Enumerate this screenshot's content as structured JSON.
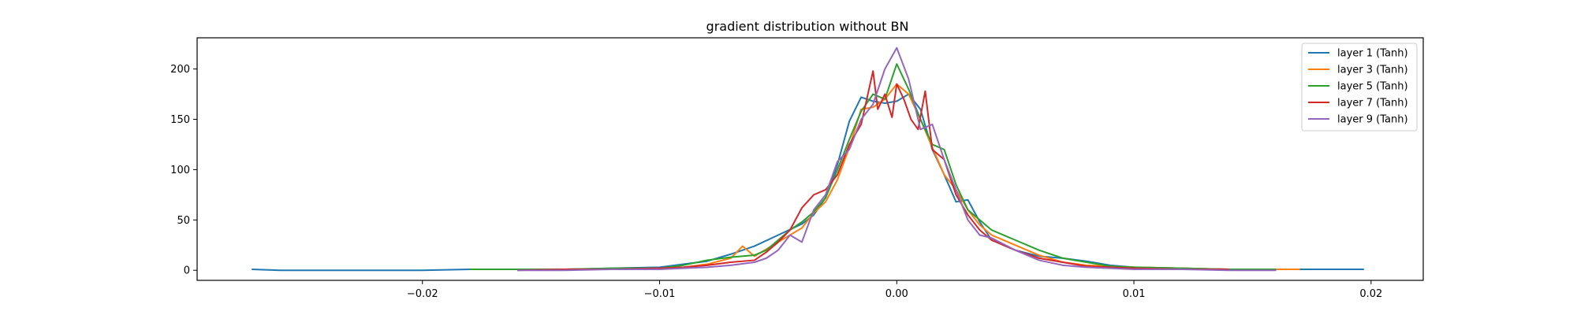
{
  "chart_data": {
    "type": "line",
    "title": "gradient distribution without BN",
    "xlabel": "",
    "ylabel": "",
    "xlim": [
      -0.0295,
      0.0222
    ],
    "ylim": [
      -10,
      231
    ],
    "x_ticks": [
      -0.02,
      -0.01,
      0.0,
      0.01,
      0.02
    ],
    "x_tick_labels": [
      "−0.02",
      "−0.01",
      "0.00",
      "0.01",
      "0.02"
    ],
    "y_ticks": [
      0,
      50,
      100,
      150,
      200
    ],
    "y_tick_labels": [
      "0",
      "50",
      "100",
      "150",
      "200"
    ],
    "grid": false,
    "legend_position": "top-right",
    "series": [
      {
        "name": "layer 1 (Tanh)",
        "color": "#1f77b4",
        "x": [
          -0.0272,
          -0.026,
          -0.024,
          -0.022,
          -0.02,
          -0.018,
          -0.016,
          -0.014,
          -0.012,
          -0.01,
          -0.009,
          -0.008,
          -0.007,
          -0.006,
          -0.005,
          -0.004,
          -0.0035,
          -0.003,
          -0.0025,
          -0.002,
          -0.0015,
          -0.001,
          -0.0005,
          0.0,
          0.0005,
          0.001,
          0.0015,
          0.002,
          0.0025,
          0.003,
          0.0035,
          0.004,
          0.005,
          0.006,
          0.007,
          0.008,
          0.009,
          0.01,
          0.012,
          0.014,
          0.016,
          0.018,
          0.0197
        ],
        "y": [
          1,
          0,
          0,
          0,
          0,
          1,
          1,
          1,
          2,
          3,
          6,
          9,
          16,
          24,
          35,
          46,
          55,
          72,
          105,
          148,
          172,
          168,
          166,
          168,
          175,
          160,
          120,
          95,
          68,
          70,
          48,
          30,
          20,
          14,
          12,
          9,
          5,
          3,
          2,
          1,
          1,
          1,
          1
        ]
      },
      {
        "name": "layer 3 (Tanh)",
        "color": "#ff7f0e",
        "x": [
          -0.018,
          -0.016,
          -0.014,
          -0.012,
          -0.01,
          -0.009,
          -0.008,
          -0.007,
          -0.0065,
          -0.006,
          -0.005,
          -0.004,
          -0.0035,
          -0.003,
          -0.0025,
          -0.002,
          -0.0015,
          -0.001,
          -0.0005,
          0.0,
          0.0005,
          0.001,
          0.0015,
          0.002,
          0.0025,
          0.003,
          0.0035,
          0.004,
          0.005,
          0.006,
          0.007,
          0.008,
          0.009,
          0.01,
          0.012,
          0.014,
          0.016,
          0.017
        ],
        "y": [
          1,
          1,
          1,
          1,
          2,
          3,
          6,
          12,
          24,
          14,
          28,
          42,
          57,
          68,
          90,
          122,
          160,
          162,
          170,
          185,
          175,
          150,
          122,
          95,
          80,
          60,
          45,
          35,
          25,
          15,
          8,
          5,
          4,
          3,
          2,
          1,
          1,
          1
        ]
      },
      {
        "name": "layer 5 (Tanh)",
        "color": "#2ca02c",
        "x": [
          -0.018,
          -0.016,
          -0.014,
          -0.012,
          -0.01,
          -0.009,
          -0.008,
          -0.007,
          -0.006,
          -0.0055,
          -0.005,
          -0.0045,
          -0.004,
          -0.0035,
          -0.003,
          -0.0025,
          -0.002,
          -0.0015,
          -0.001,
          -0.0005,
          0.0,
          0.0005,
          0.001,
          0.0015,
          0.002,
          0.0025,
          0.003,
          0.0035,
          0.004,
          0.005,
          0.006,
          0.007,
          0.008,
          0.009,
          0.01,
          0.012,
          0.014,
          0.016
        ],
        "y": [
          1,
          1,
          1,
          2,
          2,
          5,
          10,
          13,
          15,
          20,
          30,
          40,
          48,
          58,
          72,
          100,
          130,
          158,
          175,
          170,
          205,
          180,
          150,
          125,
          120,
          85,
          60,
          50,
          40,
          30,
          20,
          12,
          8,
          4,
          3,
          2,
          1,
          1
        ]
      },
      {
        "name": "layer 7 (Tanh)",
        "color": "#d62728",
        "x": [
          -0.016,
          -0.014,
          -0.012,
          -0.01,
          -0.009,
          -0.008,
          -0.007,
          -0.006,
          -0.0055,
          -0.005,
          -0.0045,
          -0.004,
          -0.0035,
          -0.003,
          -0.0025,
          -0.002,
          -0.0015,
          -0.001,
          -0.0008,
          -0.0005,
          -0.0002,
          0.0,
          0.0003,
          0.0006,
          0.0009,
          0.0012,
          0.0015,
          0.002,
          0.0025,
          0.003,
          0.0035,
          0.004,
          0.005,
          0.006,
          0.007,
          0.008,
          0.009,
          0.01,
          0.012,
          0.014
        ],
        "y": [
          0,
          1,
          1,
          2,
          3,
          5,
          8,
          10,
          18,
          28,
          40,
          62,
          75,
          80,
          95,
          125,
          145,
          198,
          160,
          175,
          152,
          185,
          170,
          150,
          140,
          178,
          120,
          110,
          75,
          55,
          40,
          30,
          20,
          12,
          8,
          4,
          3,
          2,
          1,
          1
        ]
      },
      {
        "name": "layer 9 (Tanh)",
        "color": "#9467bd",
        "x": [
          -0.016,
          -0.014,
          -0.012,
          -0.01,
          -0.009,
          -0.008,
          -0.007,
          -0.006,
          -0.0055,
          -0.005,
          -0.0045,
          -0.004,
          -0.0035,
          -0.003,
          -0.0025,
          -0.002,
          -0.0015,
          -0.001,
          -0.0005,
          0.0,
          0.0005,
          0.001,
          0.0015,
          0.002,
          0.0025,
          0.003,
          0.0035,
          0.004,
          0.005,
          0.006,
          0.007,
          0.008,
          0.009,
          0.01,
          0.012,
          0.014,
          0.016
        ],
        "y": [
          0,
          0,
          1,
          1,
          2,
          3,
          5,
          8,
          12,
          20,
          35,
          28,
          60,
          75,
          108,
          120,
          150,
          165,
          200,
          221,
          190,
          140,
          145,
          110,
          80,
          50,
          35,
          32,
          20,
          10,
          5,
          3,
          2,
          1,
          1,
          0,
          0
        ]
      }
    ]
  }
}
